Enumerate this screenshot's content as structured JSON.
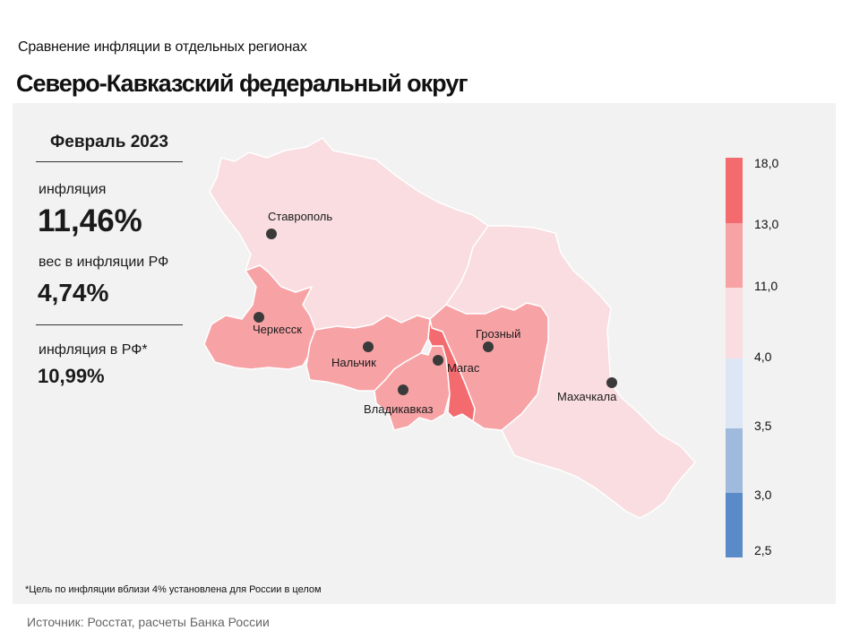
{
  "header": {
    "subtitle": "Сравнение  инфляции  в отдельных  регионах",
    "title": "Северо-Кавказский федеральный округ"
  },
  "summary": {
    "period": "Февраль 2023",
    "inflation_label": "инфляция",
    "inflation_value": "11,46%",
    "weight_label": "вес в инфляции  РФ",
    "weight_value": "4,74%",
    "rf_label": "инфляция  в РФ*",
    "rf_value": "10,99%"
  },
  "cities": [
    {
      "name": "Ставрополь"
    },
    {
      "name": "Черкесск"
    },
    {
      "name": "Нальчик"
    },
    {
      "name": "Владикавказ"
    },
    {
      "name": "Магас"
    },
    {
      "name": "Грозный"
    },
    {
      "name": "Махачкала"
    }
  ],
  "legend": {
    "labels": [
      "18,0",
      "13,0",
      "11,0",
      "4,0",
      "3,5",
      "3,0",
      "2,5"
    ],
    "bins": [
      {
        "from": "13,0",
        "to": "18,0",
        "color": "#f36b6f"
      },
      {
        "from": "11,0",
        "to": "13,0",
        "color": "#f7a3a6"
      },
      {
        "from": "4,0",
        "to": "11,0",
        "color": "#f9dde0"
      },
      {
        "from": "3,5",
        "to": "4,0",
        "color": "#dde6f5"
      },
      {
        "from": "3,0",
        "to": "3,5",
        "color": "#9fbadd"
      },
      {
        "from": "2,5",
        "to": "3,0",
        "color": "#5b8ac8"
      }
    ]
  },
  "regions": [
    {
      "name": "Ставропольский край",
      "bin": 2
    },
    {
      "name": "Дагестан",
      "bin": 2
    },
    {
      "name": "Карачаево-Черкесия",
      "bin": 1
    },
    {
      "name": "Кабардино-Балкария",
      "bin": 1
    },
    {
      "name": "Северная Осетия",
      "bin": 1
    },
    {
      "name": "Чечня",
      "bin": 1
    },
    {
      "name": "Ингушетия",
      "bin": 0
    }
  ],
  "footer": {
    "note": "*Цель по инфляции вблизи 4% установлена для России в целом",
    "source": "Источник: Росстат, расчеты Банка России"
  }
}
